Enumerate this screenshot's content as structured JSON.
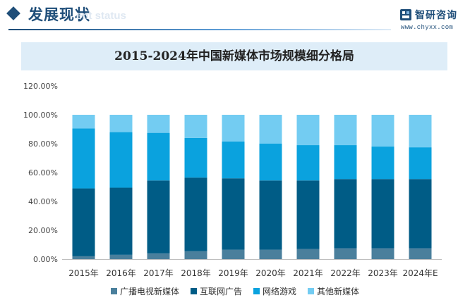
{
  "header": {
    "title": "发展现状",
    "subtitle": "ent status",
    "brand_name": "智研咨询",
    "brand_url": "www.chyxx.com"
  },
  "chart_data": {
    "type": "bar",
    "stacked": true,
    "title": "2015-2024年中国新媒体市场规模细分格局",
    "categories": [
      "2015年",
      "2016年",
      "2017年",
      "2018年",
      "2019年",
      "2020年",
      "2021年",
      "2022年",
      "2023年",
      "2024年E"
    ],
    "series": [
      {
        "name": "广播电视新媒体",
        "color": "#4a7f9c",
        "values": [
          2.0,
          3.0,
          4.0,
          5.5,
          6.5,
          6.5,
          7.0,
          7.5,
          7.5,
          7.5
        ]
      },
      {
        "name": "互联网广告",
        "color": "#005c86",
        "values": [
          47.0,
          46.5,
          50.5,
          51.0,
          49.5,
          48.0,
          47.5,
          48.0,
          48.0,
          48.0
        ]
      },
      {
        "name": "网络游戏",
        "color": "#0aa2de",
        "values": [
          41.5,
          38.5,
          33.0,
          27.5,
          25.5,
          25.5,
          24.5,
          23.5,
          22.5,
          22.0
        ]
      },
      {
        "name": "其他新媒体",
        "color": "#73ccf2",
        "values": [
          9.5,
          12.0,
          12.5,
          16.0,
          18.5,
          20.0,
          21.0,
          21.0,
          22.0,
          22.5
        ]
      }
    ],
    "ylim": [
      0,
      120
    ],
    "yticks": [
      "0.00%",
      "20.00%",
      "40.00%",
      "60.00%",
      "80.00%",
      "100.00%",
      "120.00%"
    ],
    "ytick_values": [
      0,
      20,
      40,
      60,
      80,
      100,
      120
    ],
    "grid": false,
    "legend": "bottom",
    "xlabel": "",
    "ylabel": ""
  }
}
